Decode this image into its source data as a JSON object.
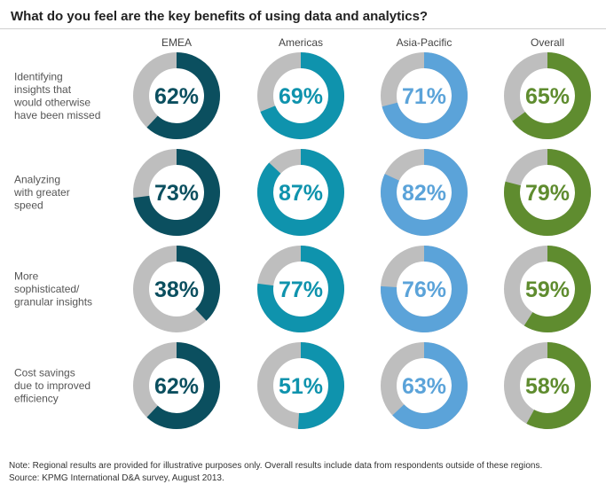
{
  "title": "What do you feel are the key benefits of using data and analytics?",
  "chart_data": {
    "type": "pie",
    "title": "What do you feel are the key benefits of using data and analytics?",
    "columns": [
      {
        "name": "EMEA",
        "color": "#0b4f5f"
      },
      {
        "name": "Americas",
        "color": "#0f93ad"
      },
      {
        "name": "Asia-Pacific",
        "color": "#5ba3d9"
      },
      {
        "name": "Overall",
        "color": "#5f8c2f"
      }
    ],
    "remainder_color": "#bebebe",
    "rows": [
      {
        "label": [
          "Identifying",
          "insights that",
          "would otherwise",
          "have been missed"
        ],
        "values": [
          62,
          69,
          71,
          65
        ]
      },
      {
        "label": [
          "Analyzing",
          "with greater",
          "speed"
        ],
        "values": [
          73,
          87,
          82,
          79
        ]
      },
      {
        "label": [
          "More",
          "sophisticated/",
          "granular insights"
        ],
        "values": [
          38,
          77,
          76,
          59
        ]
      },
      {
        "label": [
          "Cost savings",
          "due to improved",
          "efficiency"
        ],
        "values": [
          62,
          51,
          63,
          58
        ]
      }
    ],
    "unit": "%"
  },
  "footnote": {
    "note": "Note: Regional results are provided for illustrative purposes only. Overall results include data from respondents outside of these regions.",
    "source": "Source: KPMG International D&A survey, August 2013."
  }
}
